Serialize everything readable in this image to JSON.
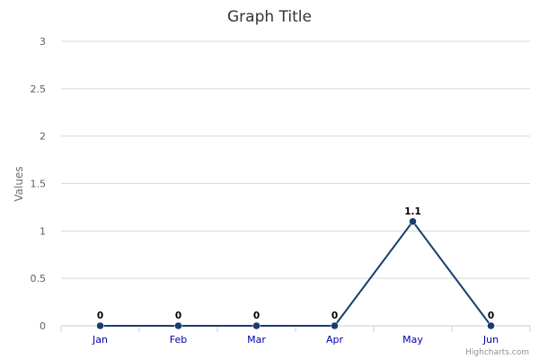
{
  "credit": "Highcharts.com",
  "colors": {
    "series": "#193e6d",
    "grid": "#d8d8d8",
    "axis": "#c0d0e0",
    "x_tick_text": "#0000aa",
    "y_tick_text": "#606060"
  },
  "chart_data": {
    "type": "line",
    "title": "Graph Title",
    "xlabel": "",
    "ylabel": "Values",
    "categories": [
      "Jan",
      "Feb",
      "Mar",
      "Apr",
      "May",
      "Jun"
    ],
    "y_ticks": [
      "0",
      "0.5",
      "1",
      "1.5",
      "2",
      "2.5",
      "3"
    ],
    "ylim": [
      0,
      3
    ],
    "grid": true,
    "legend": "none",
    "series": [
      {
        "values": [
          0,
          0,
          0,
          0,
          1.1,
          0
        ],
        "labels": [
          "0",
          "0",
          "0",
          "0",
          "1.1",
          "0"
        ]
      }
    ]
  }
}
